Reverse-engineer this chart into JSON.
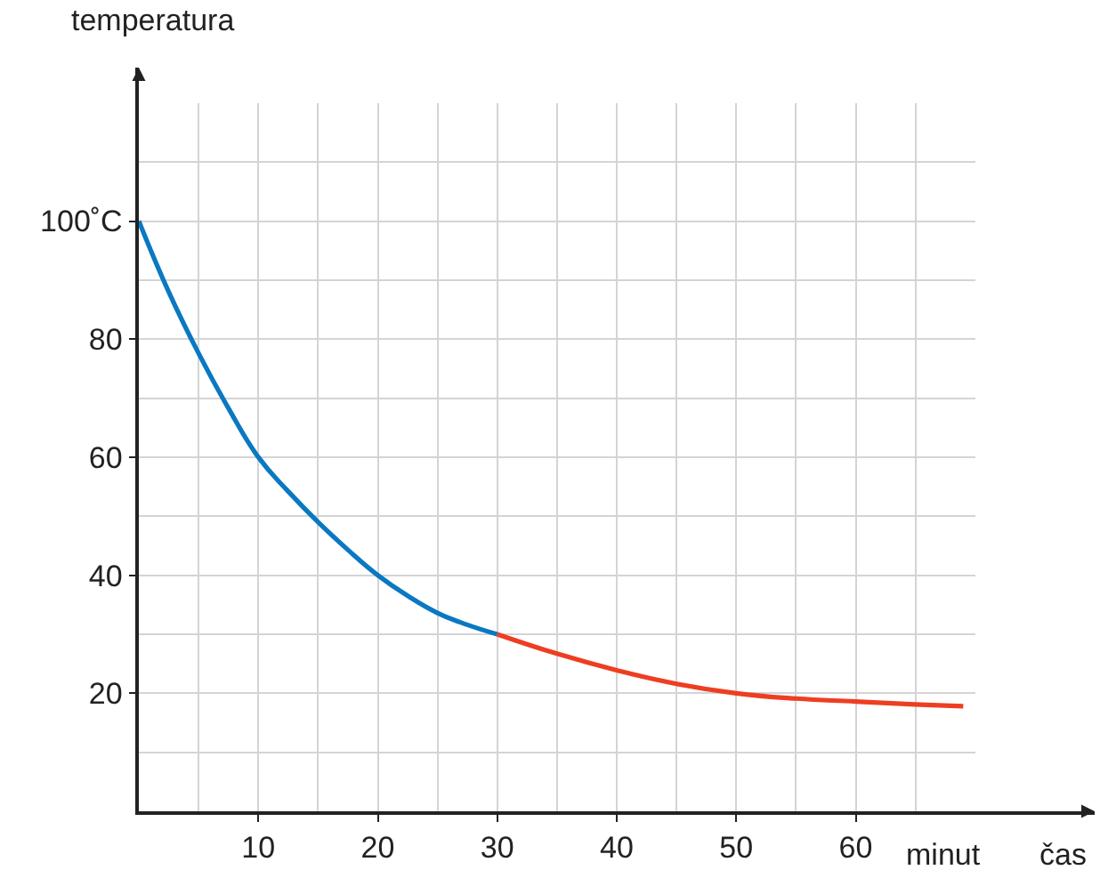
{
  "chart_data": {
    "type": "line",
    "xlabel": "čas",
    "ylabel": "temperatura",
    "xlim": [
      0,
      80
    ],
    "ylim": [
      0,
      126
    ],
    "xticks": [
      10,
      20,
      30,
      40,
      50,
      {
        "value": 60,
        "label": "60"
      }
    ],
    "yticks": [
      20,
      40,
      60,
      80,
      {
        "value": 100,
        "label": "100˚C"
      }
    ],
    "grid": true,
    "marker": "none",
    "line_style": "solid",
    "annotations": [
      "minut"
    ],
    "series": [
      {
        "color": "#0a78c2",
        "x": [
          0,
          2.5,
          5,
          7.5,
          10,
          12.5,
          15,
          17.5,
          20,
          22.5,
          25,
          27.5,
          30
        ],
        "values": [
          100,
          88,
          77.6,
          68.3,
          60,
          54.2,
          49,
          44.3,
          40,
          36.5,
          33.6,
          31.6,
          30
        ]
      },
      {
        "color": "#ee3e22",
        "x": [
          30,
          35,
          40,
          45,
          50,
          55,
          60,
          65,
          69
        ],
        "values": [
          30,
          26.7,
          23.9,
          21.6,
          20,
          19.1,
          18.6,
          18.1,
          17.8
        ]
      }
    ]
  }
}
